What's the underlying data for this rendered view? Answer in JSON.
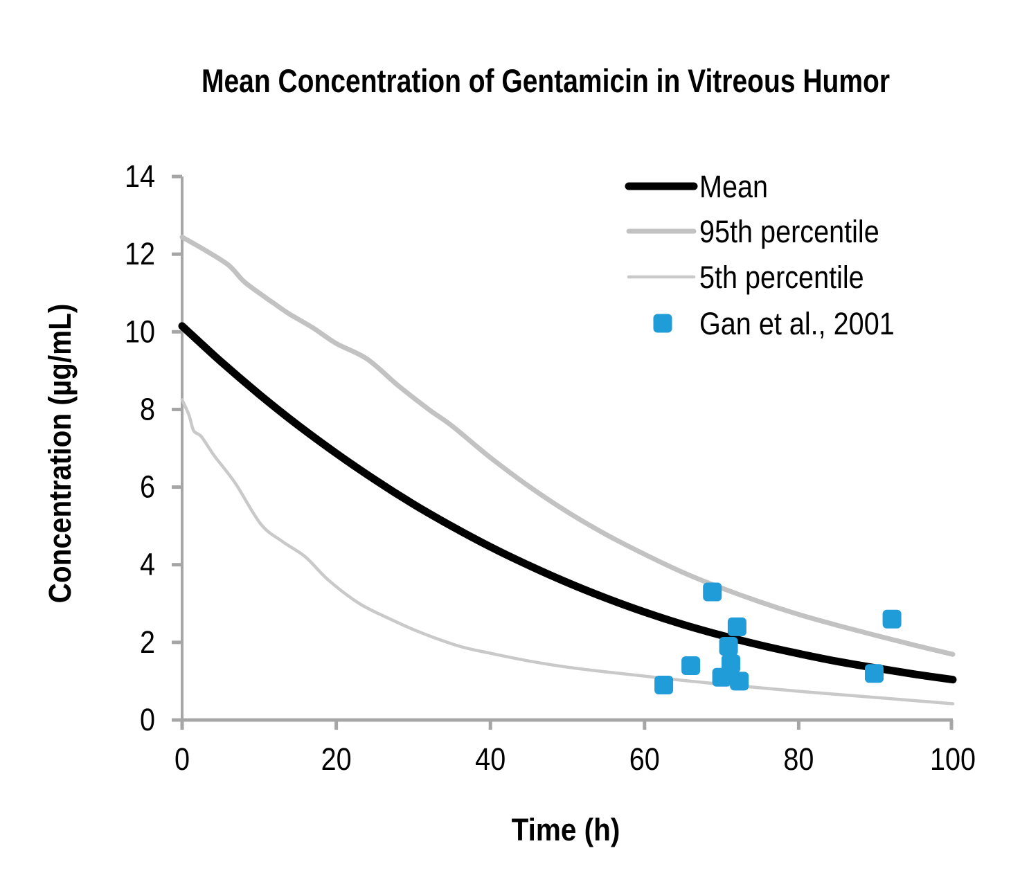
{
  "colors": {
    "background": "#FFFFFF",
    "axis": "#A6A6A6",
    "text": "#000000",
    "mean_line": "#000000",
    "p95_line": "#C2C2C2",
    "p5_line": "#C9C9C9",
    "marker_blue": "#209CD8"
  },
  "chart_data": {
    "type": "line+scatter",
    "title": "Mean Concentration of Gentamicin in Vitreous Humor",
    "xlabel": "Time (h)",
    "ylabel": "Concentration (µg/mL)",
    "xlim": [
      0,
      100
    ],
    "ylim": [
      0,
      14
    ],
    "x_ticks": [
      0,
      20,
      40,
      60,
      80,
      100
    ],
    "y_ticks": [
      0,
      2,
      4,
      6,
      8,
      10,
      12,
      14
    ],
    "grid": false,
    "legend_position": "inside-top-right",
    "series": [
      {
        "name": "Mean",
        "type": "line",
        "color": "#000000",
        "stroke_width": 11,
        "points": [
          [
            0,
            10.15
          ],
          [
            5,
            9.24
          ],
          [
            10,
            8.39
          ],
          [
            15,
            7.6
          ],
          [
            20,
            6.87
          ],
          [
            25,
            6.19
          ],
          [
            30,
            5.56
          ],
          [
            35,
            4.99
          ],
          [
            40,
            4.46
          ],
          [
            45,
            3.98
          ],
          [
            50,
            3.54
          ],
          [
            55,
            3.14
          ],
          [
            60,
            2.78
          ],
          [
            65,
            2.46
          ],
          [
            70,
            2.18
          ],
          [
            75,
            1.93
          ],
          [
            80,
            1.71
          ],
          [
            85,
            1.51
          ],
          [
            90,
            1.34
          ],
          [
            95,
            1.18
          ],
          [
            100,
            1.04
          ]
        ]
      },
      {
        "name": "95th percentile",
        "type": "line",
        "color": "#C2C2C2",
        "stroke_width": 7,
        "points": [
          [
            0,
            12.44
          ],
          [
            3,
            12.1
          ],
          [
            6,
            11.72
          ],
          [
            8,
            11.3
          ],
          [
            10,
            11.0
          ],
          [
            12,
            10.72
          ],
          [
            14,
            10.45
          ],
          [
            17,
            10.1
          ],
          [
            20,
            9.7
          ],
          [
            24,
            9.3
          ],
          [
            28,
            8.62
          ],
          [
            32,
            8.0
          ],
          [
            35,
            7.58
          ],
          [
            40,
            6.76
          ],
          [
            45,
            6.02
          ],
          [
            50,
            5.36
          ],
          [
            55,
            4.78
          ],
          [
            60,
            4.27
          ],
          [
            65,
            3.8
          ],
          [
            70,
            3.4
          ],
          [
            75,
            3.04
          ],
          [
            80,
            2.72
          ],
          [
            85,
            2.44
          ],
          [
            90,
            2.18
          ],
          [
            95,
            1.93
          ],
          [
            100,
            1.69
          ]
        ]
      },
      {
        "name": "5th percentile",
        "type": "line",
        "color": "#C9C9C9",
        "stroke_width": 4.5,
        "points": [
          [
            0,
            8.25
          ],
          [
            0.9,
            7.85
          ],
          [
            1.5,
            7.45
          ],
          [
            2.5,
            7.3
          ],
          [
            4.2,
            6.8
          ],
          [
            6.9,
            6.1
          ],
          [
            10.2,
            5.05
          ],
          [
            13,
            4.6
          ],
          [
            16,
            4.2
          ],
          [
            19,
            3.6
          ],
          [
            23,
            3.0
          ],
          [
            27,
            2.6
          ],
          [
            31,
            2.25
          ],
          [
            36,
            1.9
          ],
          [
            40,
            1.72
          ],
          [
            45,
            1.52
          ],
          [
            50,
            1.36
          ],
          [
            55,
            1.24
          ],
          [
            60,
            1.13
          ],
          [
            65,
            1.02
          ],
          [
            70,
            0.92
          ],
          [
            75,
            0.83
          ],
          [
            80,
            0.74
          ],
          [
            85,
            0.66
          ],
          [
            90,
            0.58
          ],
          [
            95,
            0.5
          ],
          [
            100,
            0.42
          ]
        ]
      },
      {
        "name": "Gan et al., 2001",
        "type": "scatter",
        "color": "#209CD8",
        "marker": "rounded-square",
        "marker_size": 27,
        "points": [
          [
            62.5,
            0.9
          ],
          [
            66,
            1.4
          ],
          [
            68.8,
            3.3
          ],
          [
            70,
            1.1
          ],
          [
            70.9,
            1.9
          ],
          [
            71.2,
            1.45
          ],
          [
            72,
            2.4
          ],
          [
            72.3,
            1.0
          ],
          [
            89.8,
            1.2
          ],
          [
            92.1,
            2.6
          ]
        ]
      }
    ]
  }
}
